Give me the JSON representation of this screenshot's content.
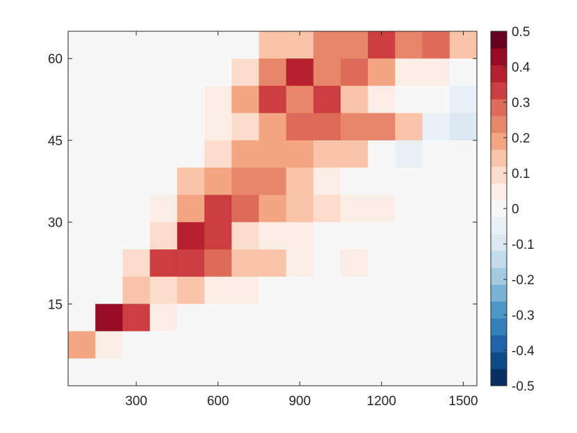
{
  "chart_data": {
    "type": "heatmap",
    "title": "",
    "xlabel": "",
    "ylabel": "",
    "x_centers": [
      100,
      200,
      300,
      400,
      500,
      600,
      700,
      800,
      900,
      1000,
      1100,
      1200,
      1300,
      1400,
      1500
    ],
    "y_centers": [
      62.5,
      57.5,
      52.5,
      47.5,
      42.5,
      37.5,
      32.5,
      27.5,
      22.5,
      17.5,
      12.5,
      7.5,
      2.5
    ],
    "xlim": [
      50,
      1550
    ],
    "ylim": [
      0,
      65
    ],
    "x_ticks": [
      300,
      600,
      900,
      1200,
      1500
    ],
    "y_ticks": [
      15,
      30,
      45,
      60
    ],
    "values": [
      [
        0,
        0,
        0,
        0,
        0,
        0,
        0,
        0.15,
        0.15,
        0.25,
        0.25,
        0.35,
        0.25,
        0.3,
        0.15
      ],
      [
        0,
        0,
        0,
        0,
        0,
        0,
        0.1,
        0.25,
        0.4,
        0.25,
        0.3,
        0.2,
        0.05,
        0.05,
        -0.02
      ],
      [
        0,
        0,
        0,
        0,
        0,
        0.05,
        0.2,
        0.35,
        0.25,
        0.35,
        0.15,
        0.05,
        -0.02,
        -0.02,
        -0.07
      ],
      [
        0,
        0,
        0,
        0,
        0,
        0.05,
        0.1,
        0.2,
        0.3,
        0.3,
        0.25,
        0.25,
        0.15,
        -0.05,
        -0.1
      ],
      [
        0,
        0,
        0,
        0,
        0,
        0.1,
        0.2,
        0.2,
        0.2,
        0.15,
        0.15,
        0,
        -0.05,
        0,
        0
      ],
      [
        0,
        0,
        0,
        0,
        0.15,
        0.2,
        0.25,
        0.25,
        0.15,
        0.05,
        0,
        0,
        0,
        0,
        0
      ],
      [
        0,
        0,
        0,
        0.05,
        0.2,
        0.35,
        0.3,
        0.2,
        0.15,
        0.1,
        0.05,
        0.05,
        0,
        0,
        0
      ],
      [
        0,
        0,
        0,
        0.1,
        0.4,
        0.35,
        0.1,
        0.05,
        0.05,
        0,
        0,
        0,
        0,
        0,
        0
      ],
      [
        0,
        0,
        0.1,
        0.35,
        0.35,
        0.3,
        0.15,
        0.15,
        0.05,
        0,
        0.05,
        0,
        0,
        0,
        0
      ],
      [
        0,
        0,
        0.15,
        0.1,
        0.15,
        0.05,
        0.05,
        0,
        0,
        0,
        0,
        0,
        0,
        0,
        0
      ],
      [
        0,
        0.45,
        0.35,
        0.05,
        0,
        0,
        0,
        0,
        0,
        0,
        0,
        0,
        0,
        0,
        0
      ],
      [
        0.2,
        0.05,
        0,
        0,
        0,
        0,
        0,
        0,
        0,
        0,
        0,
        0,
        0,
        0,
        0
      ],
      [
        0,
        0,
        0,
        0,
        0,
        0,
        0,
        0,
        0,
        0,
        0,
        0,
        0,
        0,
        0
      ]
    ],
    "colorbar": {
      "min": -0.5,
      "max": 0.5,
      "tick_labels": [
        "0.5",
        "0.4",
        "0.3",
        "0.2",
        "0.1",
        "0",
        "-0.1",
        "-0.2",
        "-0.3",
        "-0.4",
        "-0.5"
      ],
      "colors": [
        "#053061",
        "#0d4b86",
        "#1f64a8",
        "#3380bb",
        "#4d97c7",
        "#78b2d4",
        "#a1cae1",
        "#c3dceb",
        "#dbe9f2",
        "#eaf1f6",
        "#f7f7f7",
        "#fbeee6",
        "#fcdccb",
        "#f9c4a8",
        "#f4a582",
        "#e7866a",
        "#dc6b5a",
        "#cb3d3e",
        "#b6202f",
        "#960c26",
        "#67001f"
      ]
    },
    "grid": false,
    "legend": "none"
  }
}
